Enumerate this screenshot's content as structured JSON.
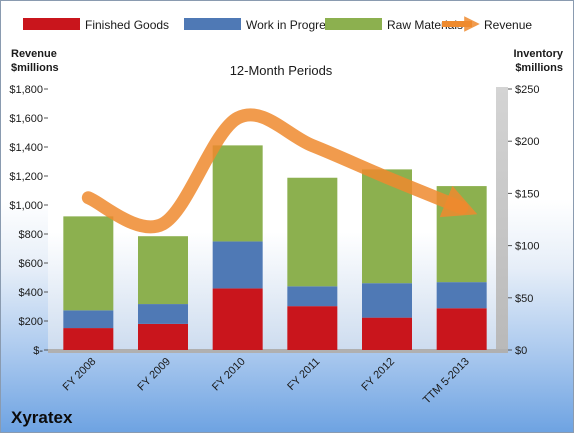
{
  "chart_data": {
    "type": "bar",
    "title": "12-Month Periods",
    "company": "Xyratex",
    "categories": [
      "FY 2008",
      "FY 2009",
      "FY 2010",
      "FY 2011",
      "FY 2012",
      "TTM 5-2013"
    ],
    "series": [
      {
        "name": "Finished Goods",
        "axis": "right",
        "color": "#c9151c",
        "values": [
          21,
          25,
          59,
          42,
          31,
          40
        ]
      },
      {
        "name": "Work in Progress",
        "axis": "right",
        "color": "#4f79b5",
        "values": [
          17,
          19,
          45,
          19,
          33,
          25
        ]
      },
      {
        "name": "Raw Materials",
        "axis": "right",
        "color": "#8cb04f",
        "values": [
          90,
          65,
          92,
          104,
          109,
          92
        ]
      }
    ],
    "line_series": {
      "name": "Revenue",
      "axis": "left",
      "color": "#ee8a2e",
      "values": [
        1050,
        870,
        1600,
        1410,
        1190,
        980
      ]
    },
    "y_left": {
      "label_lines": [
        "Revenue",
        "$millions"
      ],
      "ylim": [
        0,
        1800
      ],
      "ticks": [
        0,
        200,
        400,
        600,
        800,
        1000,
        1200,
        1400,
        1600,
        1800
      ],
      "tick_labels": [
        "$-",
        "$200",
        "$400",
        "$600",
        "$800",
        "$1,000",
        "$1,200",
        "$1,400",
        "$1,600",
        "$1,800"
      ]
    },
    "y_right": {
      "label_lines": [
        "Inventory",
        "$millions"
      ],
      "ylim": [
        0,
        250
      ],
      "ticks": [
        0,
        50,
        100,
        150,
        200,
        250
      ],
      "tick_labels": [
        "$0",
        "$50",
        "$100",
        "$150",
        "$200",
        "$250"
      ]
    },
    "legend_position": "top",
    "grid": false,
    "stacked": true
  }
}
